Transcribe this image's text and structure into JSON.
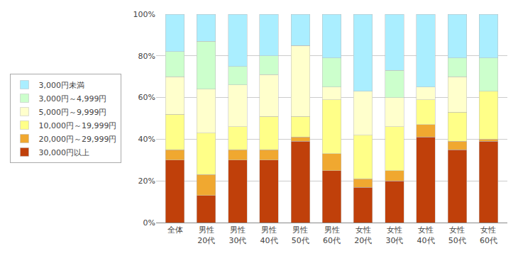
{
  "chart_data": {
    "type": "bar",
    "stacked": true,
    "categories": [
      "全体",
      "男性\n20代",
      "男性\n30代",
      "男性\n40代",
      "男性\n50代",
      "男性\n60代",
      "女性\n20代",
      "女性\n30代",
      "女性\n40代",
      "女性\n50代",
      "女性\n60代"
    ],
    "series": [
      {
        "name": "30,000円以上",
        "color": "#C0400A",
        "values": [
          30,
          13,
          30,
          30,
          39,
          25,
          17,
          20,
          41,
          35,
          39
        ]
      },
      {
        "name": "20,000円～29,999円",
        "color": "#F0A830",
        "values": [
          5,
          10,
          5,
          5,
          2,
          8,
          4,
          5,
          6,
          4,
          1
        ]
      },
      {
        "name": "10,000円～19,999円",
        "color": "#FFFF88",
        "values": [
          17,
          20,
          11,
          16,
          10,
          26,
          21,
          21,
          12,
          14,
          23
        ]
      },
      {
        "name": "5,000円～9,999円",
        "color": "#FFFFCC",
        "values": [
          18,
          21,
          20,
          20,
          34,
          6,
          21,
          14,
          6,
          17,
          0
        ]
      },
      {
        "name": "3,000円～4,999円",
        "color": "#CCFFCC",
        "values": [
          12,
          23,
          9,
          9,
          0,
          14,
          0,
          13,
          0,
          9,
          16
        ]
      },
      {
        "name": "3,000円未満",
        "color": "#AAEEFF",
        "values": [
          18,
          13,
          25,
          20,
          15,
          21,
          37,
          27,
          35,
          21,
          21
        ]
      }
    ],
    "ylim": [
      0,
      100
    ],
    "yticks": [
      {
        "value": 0,
        "label": "0%"
      },
      {
        "value": 20,
        "label": "20%"
      },
      {
        "value": 40,
        "label": "40%"
      },
      {
        "value": 60,
        "label": "60%"
      },
      {
        "value": 80,
        "label": "80%"
      },
      {
        "value": 100,
        "label": "100%"
      }
    ],
    "grid": true,
    "legend": "left"
  }
}
